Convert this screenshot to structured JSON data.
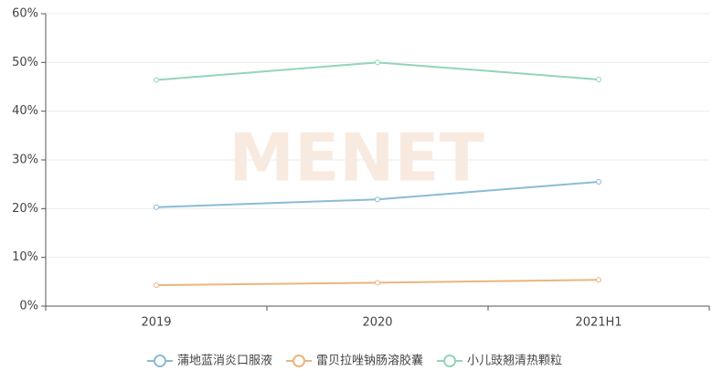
{
  "chart_data": {
    "type": "line",
    "watermark": "MENET",
    "categories": [
      "2019",
      "2020",
      "2021H1"
    ],
    "series": [
      {
        "name": "蒲地蓝消炎口服液",
        "color": "#8bbbd6",
        "values": [
          20.3,
          21.9,
          25.5
        ]
      },
      {
        "name": "雷贝拉唑钠肠溶胶囊",
        "color": "#e9b680",
        "values": [
          4.3,
          4.8,
          5.4
        ]
      },
      {
        "name": "小儿豉翘清热颗粒",
        "color": "#93d5b7",
        "values": [
          46.4,
          50.0,
          46.5
        ]
      }
    ],
    "ylim": [
      0,
      60
    ],
    "yticks": [
      {
        "value": 0,
        "label": "0%"
      },
      {
        "value": 10,
        "label": "10%"
      },
      {
        "value": 20,
        "label": "20%"
      },
      {
        "value": 30,
        "label": "30%"
      },
      {
        "value": 40,
        "label": "40%"
      },
      {
        "value": 50,
        "label": "50%"
      },
      {
        "value": 60,
        "label": "60%"
      }
    ],
    "grid": true,
    "legend": "bottom"
  }
}
